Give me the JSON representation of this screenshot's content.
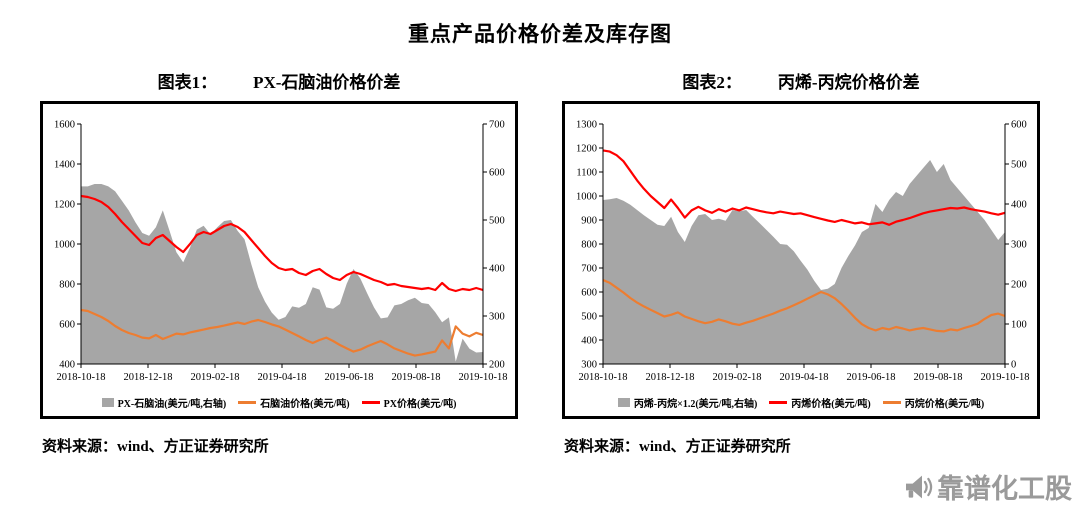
{
  "page_title": "重点产品价格价差及库存图",
  "panels": [
    {
      "caption_label": "图表1：",
      "caption_title": "PX-石脑油价格价差",
      "source": "资料来源：wind、方正证券研究所"
    },
    {
      "caption_label": "图表2：",
      "caption_title": "丙烯-丙烷价格价差",
      "source": "资料来源：wind、方正证券研究所"
    }
  ],
  "watermark": {
    "text": "靠谱化工股",
    "icon": "megaphone-icon",
    "color": "#9a9a9a"
  },
  "chart_data": [
    {
      "type": "area",
      "title": "PX-石脑油价格价差",
      "x_ticks": [
        "2018-10-18",
        "2018-12-18",
        "2019-02-18",
        "2019-04-18",
        "2019-06-18",
        "2019-08-18",
        "2019-10-18"
      ],
      "left_axis": {
        "min": 400,
        "max": 1600,
        "ticks": [
          1600,
          1400,
          1200,
          1000,
          800,
          600,
          400
        ]
      },
      "right_axis": {
        "min": 200,
        "max": 700,
        "ticks": [
          700,
          600,
          500,
          400,
          300,
          200
        ]
      },
      "grid": false,
      "legend_position": "bottom",
      "series": [
        {
          "name": "PX-石脑油(美元/吨,右轴)",
          "type": "area",
          "axis": "right",
          "color": "#a6a6a6",
          "values": [
            570,
            570,
            575,
            575,
            570,
            560,
            540,
            520,
            495,
            473,
            467,
            485,
            520,
            477,
            433,
            412,
            442,
            480,
            488,
            470,
            485,
            498,
            500,
            477,
            460,
            408,
            360,
            330,
            307,
            292,
            298,
            320,
            317,
            325,
            360,
            355,
            318,
            315,
            325,
            367,
            398,
            378,
            347,
            318,
            295,
            297,
            322,
            325,
            333,
            338,
            327,
            325,
            308,
            287,
            297,
            205,
            253,
            232,
            224,
            225
          ]
        },
        {
          "name": "石脑油价格(美元/吨)",
          "type": "line",
          "axis": "left",
          "color": "#ED7D31",
          "values": [
            670,
            665,
            650,
            635,
            615,
            590,
            570,
            555,
            545,
            532,
            528,
            545,
            525,
            538,
            552,
            548,
            558,
            565,
            572,
            580,
            585,
            592,
            600,
            608,
            600,
            612,
            620,
            610,
            598,
            588,
            572,
            555,
            538,
            520,
            505,
            520,
            532,
            515,
            495,
            478,
            462,
            472,
            488,
            502,
            515,
            498,
            478,
            465,
            452,
            442,
            448,
            455,
            462,
            518,
            478,
            588,
            552,
            538,
            556,
            545
          ]
        },
        {
          "name": "PX价格(美元/吨)",
          "type": "line",
          "axis": "left",
          "color": "#FF0000",
          "values": [
            1240,
            1235,
            1225,
            1210,
            1185,
            1150,
            1110,
            1075,
            1040,
            1005,
            995,
            1030,
            1045,
            1015,
            985,
            960,
            1000,
            1045,
            1060,
            1050,
            1070,
            1090,
            1100,
            1085,
            1060,
            1020,
            980,
            940,
            905,
            880,
            870,
            875,
            855,
            845,
            865,
            875,
            850,
            830,
            820,
            845,
            860,
            850,
            835,
            820,
            810,
            795,
            800,
            790,
            785,
            780,
            775,
            780,
            770,
            805,
            775,
            765,
            775,
            770,
            780,
            770
          ]
        }
      ]
    },
    {
      "type": "area",
      "title": "丙烯-丙烷价格价差",
      "x_ticks": [
        "2018-10-18",
        "2018-12-18",
        "2019-02-18",
        "2019-04-18",
        "2019-06-18",
        "2019-08-18",
        "2019-10-18"
      ],
      "left_axis": {
        "min": 300,
        "max": 1300,
        "ticks": [
          1300,
          1200,
          1100,
          1000,
          900,
          800,
          700,
          600,
          500,
          400,
          300
        ]
      },
      "right_axis": {
        "min": 0,
        "max": 600,
        "ticks": [
          600,
          500,
          400,
          300,
          200,
          100,
          0
        ]
      },
      "grid": false,
      "legend_position": "bottom",
      "series": [
        {
          "name": "丙烯-丙烷×1.2(美元/吨,右轴)",
          "type": "area",
          "axis": "right",
          "color": "#a6a6a6",
          "values": [
            410,
            412,
            415,
            408,
            398,
            385,
            372,
            360,
            348,
            345,
            368,
            330,
            305,
            345,
            372,
            375,
            360,
            363,
            358,
            385,
            382,
            385,
            368,
            352,
            335,
            318,
            300,
            298,
            282,
            258,
            236,
            208,
            185,
            188,
            200,
            240,
            270,
            297,
            330,
            340,
            400,
            380,
            410,
            430,
            420,
            450,
            470,
            490,
            510,
            480,
            500,
            460,
            440,
            420,
            400,
            380,
            360,
            335,
            310,
            330
          ]
        },
        {
          "name": "丙烯价格(美元/吨)",
          "type": "line",
          "axis": "left",
          "color": "#FF0000",
          "values": [
            1190,
            1185,
            1170,
            1145,
            1105,
            1065,
            1030,
            1000,
            975,
            950,
            985,
            950,
            910,
            940,
            955,
            940,
            930,
            945,
            935,
            948,
            940,
            952,
            945,
            938,
            932,
            928,
            935,
            930,
            925,
            928,
            920,
            912,
            905,
            898,
            892,
            900,
            893,
            886,
            890,
            882,
            886,
            890,
            880,
            893,
            900,
            908,
            918,
            928,
            935,
            940,
            945,
            950,
            948,
            952,
            945,
            940,
            935,
            928,
            922,
            930
          ]
        },
        {
          "name": "丙烷价格(美元/吨)",
          "type": "line",
          "axis": "left",
          "color": "#ED7D31",
          "values": [
            650,
            638,
            618,
            598,
            575,
            556,
            540,
            526,
            512,
            498,
            505,
            515,
            498,
            488,
            478,
            470,
            476,
            486,
            478,
            468,
            463,
            472,
            480,
            490,
            500,
            510,
            522,
            532,
            545,
            558,
            572,
            586,
            600,
            590,
            574,
            550,
            522,
            492,
            466,
            450,
            440,
            450,
            444,
            454,
            448,
            440,
            446,
            450,
            444,
            438,
            436,
            444,
            440,
            450,
            458,
            468,
            488,
            504,
            510,
            500
          ]
        }
      ]
    }
  ]
}
